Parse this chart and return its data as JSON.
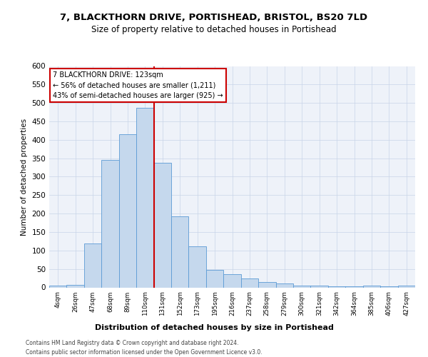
{
  "title1": "7, BLACKTHORN DRIVE, PORTISHEAD, BRISTOL, BS20 7LD",
  "title2": "Size of property relative to detached houses in Portishead",
  "xlabel": "Distribution of detached houses by size in Portishead",
  "ylabel": "Number of detached properties",
  "footnote1": "Contains HM Land Registry data © Crown copyright and database right 2024.",
  "footnote2": "Contains public sector information licensed under the Open Government Licence v3.0.",
  "property_label": "7 BLACKTHORN DRIVE: 123sqm",
  "stat1": "← 56% of detached houses are smaller (1,211)",
  "stat2": "43% of semi-detached houses are larger (925) →",
  "bar_color": "#c5d8ed",
  "bar_edge_color": "#5b9bd5",
  "vline_color": "#cc0000",
  "background_color": "#eef2f9",
  "categories": [
    "4sqm",
    "26sqm",
    "47sqm",
    "68sqm",
    "89sqm",
    "110sqm",
    "131sqm",
    "152sqm",
    "173sqm",
    "195sqm",
    "216sqm",
    "237sqm",
    "258sqm",
    "279sqm",
    "300sqm",
    "321sqm",
    "342sqm",
    "364sqm",
    "385sqm",
    "406sqm",
    "427sqm"
  ],
  "values": [
    4,
    7,
    120,
    345,
    415,
    487,
    337,
    192,
    112,
    48,
    35,
    25,
    15,
    10,
    5,
    4,
    3,
    2,
    5,
    3,
    4
  ],
  "ylim": [
    0,
    600
  ],
  "yticks": [
    0,
    50,
    100,
    150,
    200,
    250,
    300,
    350,
    400,
    450,
    500,
    550,
    600
  ],
  "vline_x_index": 5.5,
  "box_color": "#cc0000",
  "grid_color": "#c8d4e8"
}
